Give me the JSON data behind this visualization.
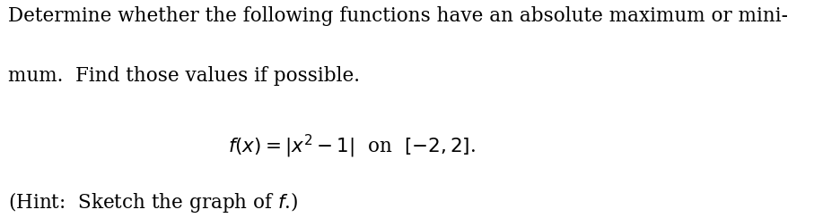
{
  "line1": "Determine whether the following functions have an absolute maximum or mini-",
  "line2": "mum.  Find those values if possible.",
  "formula": "$f(x) = |x^2 - 1|$  on  $[-2, 2]$.",
  "hint": "(Hint:  Sketch the graph of $f$.)",
  "bg_color": "#ffffff",
  "text_color": "#000000",
  "fontsize_body": 15.5,
  "fontsize_formula": 15.5,
  "fontsize_hint": 15.5
}
